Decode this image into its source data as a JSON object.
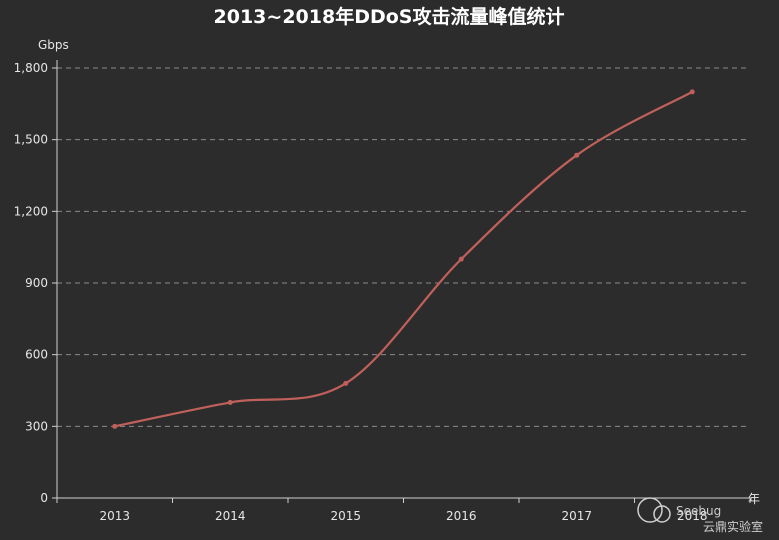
{
  "chart_data": {
    "type": "line",
    "title": "2013~2018年DDoS攻击流量峰值统计",
    "xlabel": "年",
    "ylabel": "Gbps",
    "categories": [
      "2013",
      "2014",
      "2015",
      "2016",
      "2017",
      "2018"
    ],
    "y_ticks": [
      "0",
      "300",
      "600",
      "900",
      "1,200",
      "1,500",
      "1,800"
    ],
    "series": [
      {
        "values": [
          300,
          400,
          480,
          1000,
          1435,
          1700
        ]
      }
    ],
    "ylim": [
      0,
      1800
    ],
    "grid": true,
    "line_color": "#c0605a"
  },
  "watermark": {
    "brand": "Seebug",
    "lab": "云鼎实验室",
    "icon": "cloud-icon"
  }
}
